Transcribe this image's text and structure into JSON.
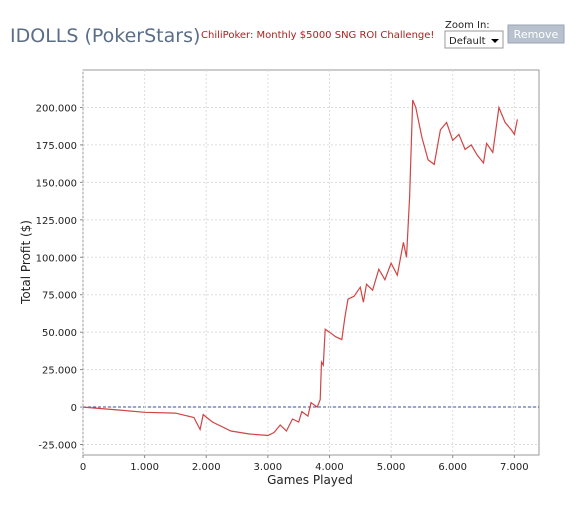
{
  "header": {
    "title": "IDOLLS (PokerStars)",
    "link": "ChiliPoker: Monthly $5000 SNG ROI Challenge!",
    "zoom_label": "Zoom In:",
    "zoom_value": "Default",
    "button": "Remove"
  },
  "chart_data": {
    "type": "line",
    "xlabel": "Games Played",
    "ylabel": "Total Profit ($)",
    "color": "#d04545",
    "grid": true,
    "x": [
      0,
      300,
      600,
      1000,
      1500,
      1800,
      1900,
      1950,
      2100,
      2400,
      2700,
      3000,
      3100,
      3200,
      3300,
      3400,
      3500,
      3550,
      3650,
      3700,
      3800,
      3850,
      3870,
      3900,
      3930,
      4000,
      4100,
      4200,
      4250,
      4300,
      4400,
      4500,
      4550,
      4600,
      4700,
      4800,
      4900,
      5000,
      5100,
      5200,
      5250,
      5300,
      5350,
      5400,
      5500,
      5600,
      5700,
      5800,
      5900,
      6000,
      6100,
      6200,
      6300,
      6400,
      6500,
      6550,
      6650,
      6750,
      6850,
      6950,
      7000,
      7050
    ],
    "values": [
      0,
      -1000,
      -2000,
      -3500,
      -4000,
      -7000,
      -15000,
      -5000,
      -10000,
      -16000,
      -18000,
      -19000,
      -17000,
      -12000,
      -16000,
      -8000,
      -10000,
      -3000,
      -6000,
      3000,
      0,
      5000,
      30000,
      28000,
      52000,
      50000,
      47000,
      45000,
      60000,
      72000,
      74000,
      80000,
      70000,
      82000,
      78000,
      92000,
      85000,
      96000,
      88000,
      110000,
      100000,
      140000,
      205000,
      200000,
      180000,
      165000,
      162000,
      185000,
      190000,
      178000,
      182000,
      172000,
      175000,
      168000,
      163000,
      176000,
      170000,
      200000,
      190000,
      185000,
      182000,
      192000
    ],
    "xlim": [
      0,
      7400
    ],
    "xticks": [
      0,
      {
        "value": 1000,
        "label": "1.000"
      },
      {
        "value": 2000,
        "label": "2.000"
      },
      {
        "value": 3000,
        "label": "3.000"
      },
      {
        "value": 4000,
        "label": "4.000"
      },
      {
        "value": 5000,
        "label": "5.000"
      },
      {
        "value": 6000,
        "label": "6.000"
      },
      {
        "value": 7000,
        "label": "7.000"
      }
    ],
    "ylim": [
      -32000,
      225000
    ],
    "yticks": [
      {
        "value": -25000,
        "label": "-25.000"
      },
      0,
      {
        "value": 25000,
        "label": "25.000"
      },
      {
        "value": 50000,
        "label": "50.000"
      },
      {
        "value": 75000,
        "label": "75.000"
      },
      {
        "value": 100000,
        "label": "100.000"
      },
      {
        "value": 125000,
        "label": "125.000"
      },
      {
        "value": 150000,
        "label": "150.000"
      },
      {
        "value": 175000,
        "label": "175.000"
      },
      {
        "value": 200000,
        "label": "200.000"
      }
    ]
  }
}
